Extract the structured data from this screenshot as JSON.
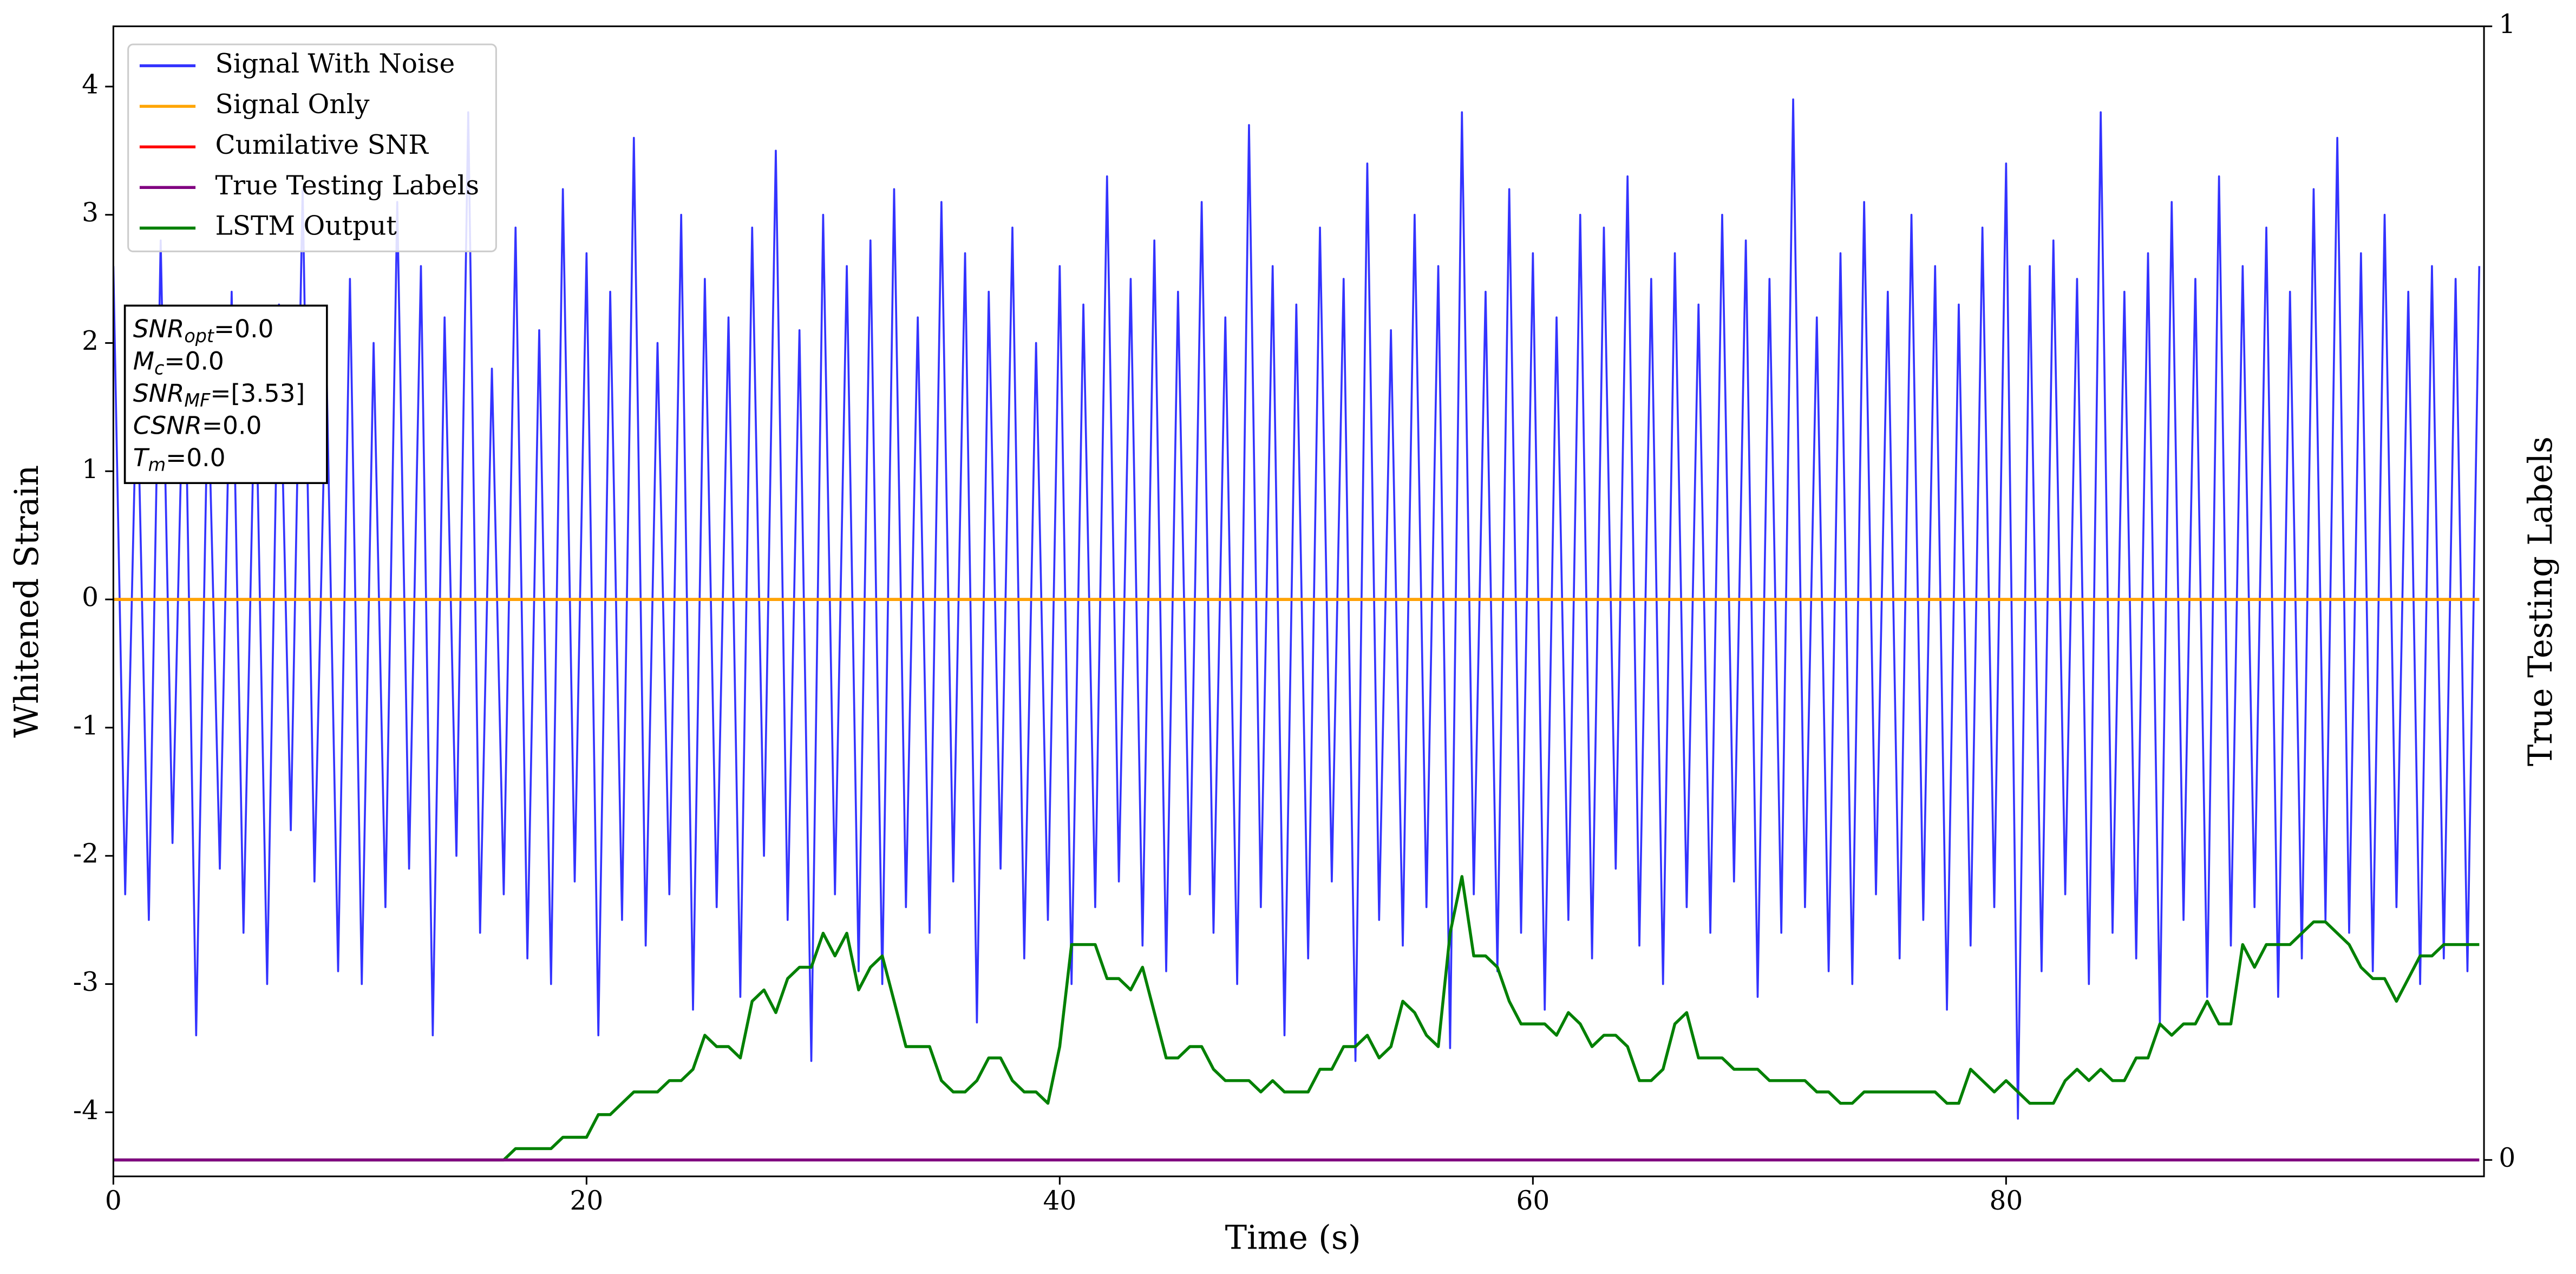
{
  "chart_data": {
    "type": "line",
    "xlabel": "Time (s)",
    "ylabel": "Whitened Strain",
    "y2label": "True Testing Labels",
    "xlim": [
      0,
      100.2
    ],
    "ylim": [
      -4.5,
      4.47
    ],
    "y2lim": [
      -0.0145,
      1
    ],
    "xticks": [
      0,
      20,
      40,
      60,
      80
    ],
    "yticks": [
      -4,
      -3,
      -2,
      -1,
      0,
      1,
      2,
      3,
      4
    ],
    "y2ticks": [
      0,
      1
    ],
    "legend": "upper left",
    "annotations": [
      {
        "main": "SNR",
        "sub": "opt",
        "rest": "=0.0"
      },
      {
        "main": "M",
        "sub": "c",
        "rest": "=0.0"
      },
      {
        "main": "SNR",
        "sub": "MF",
        "rest": "=[3.53]"
      },
      {
        "main": "CSNR",
        "sub": "",
        "rest": "=0.0"
      },
      {
        "main": "T",
        "sub": "m",
        "rest": "=0.0"
      }
    ],
    "x": [
      0,
      0.5,
      1,
      1.5,
      2,
      2.5,
      3,
      3.5,
      4,
      4.5,
      5,
      5.5,
      6,
      6.5,
      7,
      7.5,
      8,
      8.5,
      9,
      9.5,
      10,
      10.5,
      11,
      11.5,
      12,
      12.5,
      13,
      13.5,
      14,
      14.5,
      15,
      15.5,
      16,
      16.5,
      17,
      17.5,
      18,
      18.5,
      19,
      19.5,
      20,
      20.5,
      21,
      21.5,
      22,
      22.5,
      23,
      23.5,
      24,
      24.5,
      25,
      25.5,
      26,
      26.5,
      27,
      27.5,
      28,
      28.5,
      29,
      29.5,
      30,
      30.5,
      31,
      31.5,
      32,
      32.5,
      33,
      33.5,
      34,
      34.5,
      35,
      35.5,
      36,
      36.5,
      37,
      37.5,
      38,
      38.5,
      39,
      39.5,
      40,
      40.5,
      41,
      41.5,
      42,
      42.5,
      43,
      43.5,
      44,
      44.5,
      45,
      45.5,
      46,
      46.5,
      47,
      47.5,
      48,
      48.5,
      49,
      49.5,
      50,
      50.5,
      51,
      51.5,
      52,
      52.5,
      53,
      53.5,
      54,
      54.5,
      55,
      55.5,
      56,
      56.5,
      57,
      57.5,
      58,
      58.5,
      59,
      59.5,
      60,
      60.5,
      61,
      61.5,
      62,
      62.5,
      63,
      63.5,
      64,
      64.5,
      65,
      65.5,
      66,
      66.5,
      67,
      67.5,
      68,
      68.5,
      69,
      69.5,
      70,
      70.5,
      71,
      71.5,
      72,
      72.5,
      73,
      73.5,
      74,
      74.5,
      75,
      75.5,
      76,
      76.5,
      77,
      77.5,
      78,
      78.5,
      79,
      79.5,
      80,
      80.5,
      81,
      81.5,
      82,
      82.5,
      83,
      83.5,
      84,
      84.5,
      85,
      85.5,
      86,
      86.5,
      87,
      87.5,
      88,
      88.5,
      89,
      89.5,
      90,
      90.5,
      91,
      91.5,
      92,
      92.5,
      93,
      93.5,
      94,
      94.5,
      95,
      95.5,
      96,
      96.5,
      97,
      97.5,
      98,
      98.5,
      99,
      99.5,
      100
    ],
    "series": [
      {
        "name": "Signal With Noise",
        "color": "#3333ff",
        "values": [
          2.6,
          -2.3,
          1.8,
          -2.5,
          2.8,
          -1.9,
          2.2,
          -3.4,
          1.7,
          -2.1,
          2.4,
          -2.6,
          1.9,
          -3.0,
          2.3,
          -1.8,
          3.2,
          -2.2,
          1.9,
          -2.9,
          2.5,
          -3.0,
          2.0,
          -2.4,
          3.1,
          -2.1,
          2.6,
          -3.4,
          2.2,
          -2.0,
          3.8,
          -2.6,
          1.8,
          -2.3,
          2.9,
          -2.8,
          2.1,
          -3.0,
          3.2,
          -2.2,
          2.7,
          -3.4,
          2.4,
          -2.5,
          3.6,
          -2.7,
          2.0,
          -2.3,
          3.0,
          -3.2,
          2.5,
          -2.4,
          2.2,
          -3.1,
          2.9,
          -2.0,
          3.5,
          -2.5,
          2.1,
          -3.6,
          3.0,
          -2.3,
          2.6,
          -2.9,
          2.8,
          -3.0,
          3.2,
          -2.4,
          2.2,
          -2.6,
          3.1,
          -2.2,
          2.7,
          -3.3,
          2.4,
          -2.1,
          2.9,
          -2.8,
          2.0,
          -2.5,
          2.6,
          -3.0,
          2.3,
          -2.4,
          3.3,
          -2.2,
          2.5,
          -2.7,
          2.8,
          -2.9,
          2.4,
          -2.3,
          3.1,
          -2.6,
          2.2,
          -3.0,
          3.7,
          -2.4,
          2.6,
          -3.4,
          2.3,
          -2.8,
          2.9,
          -2.2,
          2.5,
          -3.6,
          3.4,
          -2.5,
          2.1,
          -2.7,
          3.0,
          -2.4,
          2.6,
          -3.5,
          3.8,
          -2.3,
          2.4,
          -2.9,
          3.2,
          -2.6,
          2.7,
          -3.2,
          2.2,
          -2.5,
          3.0,
          -2.8,
          2.9,
          -2.1,
          3.3,
          -2.7,
          2.5,
          -3.0,
          2.7,
          -2.4,
          2.3,
          -2.6,
          3.0,
          -2.2,
          2.8,
          -3.1,
          2.5,
          -2.6,
          3.9,
          -2.4,
          2.2,
          -2.9,
          2.7,
          -3.0,
          3.1,
          -2.3,
          2.4,
          -2.8,
          3.0,
          -2.5,
          2.6,
          -3.2,
          2.3,
          -2.7,
          2.9,
          -2.4,
          3.4,
          -4.05,
          2.6,
          -2.9,
          2.8,
          -2.3,
          2.5,
          -3.0,
          3.8,
          -2.6,
          2.4,
          -2.8,
          2.7,
          -3.3,
          3.1,
          -2.5,
          2.5,
          -3.1,
          3.3,
          -2.7,
          2.6,
          -2.4,
          2.9,
          -3.1,
          2.4,
          -2.8,
          3.2,
          -2.5,
          3.6,
          -2.6,
          2.7,
          -2.9,
          3.0,
          -2.4,
          2.4,
          -3.0,
          2.6,
          -2.8,
          2.5,
          -2.9,
          2.6
        ]
      },
      {
        "name": "Signal Only",
        "color": "#ffa500",
        "values": [
          0,
          0,
          0,
          0,
          0,
          0,
          0,
          0,
          0,
          0,
          0,
          0,
          0,
          0,
          0,
          0,
          0,
          0,
          0,
          0,
          0,
          0,
          0,
          0,
          0,
          0,
          0,
          0,
          0,
          0,
          0,
          0,
          0,
          0,
          0,
          0,
          0,
          0,
          0,
          0,
          0,
          0,
          0,
          0,
          0,
          0,
          0,
          0,
          0,
          0,
          0,
          0,
          0,
          0,
          0,
          0,
          0,
          0,
          0,
          0,
          0,
          0,
          0,
          0,
          0,
          0,
          0,
          0,
          0,
          0,
          0,
          0,
          0,
          0,
          0,
          0,
          0,
          0,
          0,
          0,
          0,
          0,
          0,
          0,
          0,
          0,
          0,
          0,
          0,
          0,
          0,
          0,
          0,
          0,
          0,
          0,
          0,
          0,
          0,
          0,
          0,
          0,
          0,
          0,
          0,
          0,
          0,
          0,
          0,
          0,
          0,
          0,
          0,
          0,
          0,
          0,
          0,
          0,
          0,
          0,
          0,
          0,
          0,
          0,
          0,
          0,
          0,
          0,
          0,
          0,
          0,
          0,
          0,
          0,
          0,
          0,
          0,
          0,
          0,
          0,
          0,
          0,
          0,
          0,
          0,
          0,
          0,
          0,
          0,
          0,
          0,
          0,
          0,
          0,
          0,
          0,
          0,
          0,
          0,
          0,
          0,
          0,
          0,
          0,
          0,
          0,
          0,
          0,
          0,
          0,
          0,
          0,
          0,
          0,
          0,
          0,
          0,
          0,
          0,
          0,
          0,
          0,
          0,
          0,
          0,
          0,
          0,
          0,
          0,
          0,
          0,
          0,
          0,
          0,
          0,
          0,
          0,
          0,
          0,
          0,
          0
        ]
      },
      {
        "name": "Cumilative SNR",
        "color": "#ff0000",
        "values": [
          0,
          0,
          0,
          0,
          0,
          0,
          0,
          0,
          0,
          0,
          0,
          0,
          0,
          0,
          0,
          0,
          0,
          0,
          0,
          0,
          0,
          0,
          0,
          0,
          0,
          0,
          0,
          0,
          0,
          0,
          0,
          0,
          0,
          0,
          0,
          0,
          0,
          0,
          0,
          0,
          0,
          0,
          0,
          0,
          0,
          0,
          0,
          0,
          0,
          0,
          0,
          0,
          0,
          0,
          0,
          0,
          0,
          0,
          0,
          0,
          0,
          0,
          0,
          0,
          0,
          0,
          0,
          0,
          0,
          0,
          0,
          0,
          0,
          0,
          0,
          0,
          0,
          0,
          0,
          0,
          0,
          0,
          0,
          0,
          0,
          0,
          0,
          0,
          0,
          0,
          0,
          0,
          0,
          0,
          0,
          0,
          0,
          0,
          0,
          0,
          0,
          0,
          0,
          0,
          0,
          0,
          0,
          0,
          0,
          0,
          0,
          0,
          0,
          0,
          0,
          0,
          0,
          0,
          0,
          0,
          0,
          0,
          0,
          0,
          0,
          0,
          0,
          0,
          0,
          0,
          0,
          0,
          0,
          0,
          0,
          0,
          0,
          0,
          0,
          0,
          0,
          0,
          0,
          0,
          0,
          0,
          0,
          0,
          0,
          0,
          0,
          0,
          0,
          0,
          0,
          0,
          0,
          0,
          0,
          0,
          0,
          0,
          0,
          0,
          0,
          0,
          0,
          0,
          0,
          0,
          0,
          0,
          0,
          0,
          0,
          0,
          0,
          0,
          0,
          0,
          0,
          0,
          0,
          0,
          0,
          0,
          0,
          0,
          0,
          0,
          0,
          0,
          0,
          0,
          0,
          0,
          0,
          0,
          0,
          0,
          0
        ]
      },
      {
        "name": "True Testing Labels",
        "color": "#800080",
        "axis": "y2",
        "values": [
          0,
          0,
          0,
          0,
          0,
          0,
          0,
          0,
          0,
          0,
          0,
          0,
          0,
          0,
          0,
          0,
          0,
          0,
          0,
          0,
          0,
          0,
          0,
          0,
          0,
          0,
          0,
          0,
          0,
          0,
          0,
          0,
          0,
          0,
          0,
          0,
          0,
          0,
          0,
          0,
          0,
          0,
          0,
          0,
          0,
          0,
          0,
          0,
          0,
          0,
          0,
          0,
          0,
          0,
          0,
          0,
          0,
          0,
          0,
          0,
          0,
          0,
          0,
          0,
          0,
          0,
          0,
          0,
          0,
          0,
          0,
          0,
          0,
          0,
          0,
          0,
          0,
          0,
          0,
          0,
          0,
          0,
          0,
          0,
          0,
          0,
          0,
          0,
          0,
          0,
          0,
          0,
          0,
          0,
          0,
          0,
          0,
          0,
          0,
          0,
          0,
          0,
          0,
          0,
          0,
          0,
          0,
          0,
          0,
          0,
          0,
          0,
          0,
          0,
          0,
          0,
          0,
          0,
          0,
          0,
          0,
          0,
          0,
          0,
          0,
          0,
          0,
          0,
          0,
          0,
          0,
          0,
          0,
          0,
          0,
          0,
          0,
          0,
          0,
          0,
          0,
          0,
          0,
          0,
          0,
          0,
          0,
          0,
          0,
          0,
          0,
          0,
          0,
          0,
          0,
          0,
          0,
          0,
          0,
          0,
          0,
          0,
          0,
          0,
          0,
          0,
          0,
          0,
          0,
          0,
          0,
          0,
          0,
          0,
          0,
          0,
          0,
          0,
          0,
          0,
          0,
          0,
          0,
          0,
          0,
          0,
          0,
          0,
          0,
          0,
          0,
          0,
          0,
          0,
          0,
          0,
          0,
          0,
          0,
          0,
          0
        ]
      },
      {
        "name": "LSTM Output",
        "color": "#008000",
        "axis": "y2",
        "values": [
          0,
          0,
          0,
          0,
          0,
          0,
          0,
          0,
          0,
          0,
          0,
          0,
          0,
          0,
          0,
          0,
          0,
          0,
          0,
          0,
          0,
          0,
          0,
          0,
          0,
          0,
          0,
          0,
          0,
          0,
          0,
          0,
          0,
          0,
          0.01,
          0.01,
          0.01,
          0.01,
          0.02,
          0.02,
          0.02,
          0.04,
          0.04,
          0.05,
          0.06,
          0.06,
          0.06,
          0.07,
          0.07,
          0.08,
          0.11,
          0.1,
          0.1,
          0.09,
          0.14,
          0.15,
          0.13,
          0.16,
          0.17,
          0.17,
          0.2,
          0.18,
          0.2,
          0.15,
          0.17,
          0.18,
          0.14,
          0.1,
          0.1,
          0.1,
          0.07,
          0.06,
          0.06,
          0.07,
          0.09,
          0.09,
          0.07,
          0.06,
          0.06,
          0.05,
          0.1,
          0.19,
          0.19,
          0.19,
          0.16,
          0.16,
          0.15,
          0.17,
          0.13,
          0.09,
          0.09,
          0.1,
          0.1,
          0.08,
          0.07,
          0.07,
          0.07,
          0.06,
          0.07,
          0.06,
          0.06,
          0.06,
          0.08,
          0.08,
          0.1,
          0.1,
          0.11,
          0.09,
          0.1,
          0.14,
          0.13,
          0.11,
          0.1,
          0.2,
          0.25,
          0.18,
          0.18,
          0.17,
          0.14,
          0.12,
          0.12,
          0.12,
          0.11,
          0.13,
          0.12,
          0.1,
          0.11,
          0.11,
          0.1,
          0.07,
          0.07,
          0.08,
          0.12,
          0.13,
          0.09,
          0.09,
          0.09,
          0.08,
          0.08,
          0.08,
          0.07,
          0.07,
          0.07,
          0.07,
          0.06,
          0.06,
          0.05,
          0.05,
          0.06,
          0.06,
          0.06,
          0.06,
          0.06,
          0.06,
          0.06,
          0.05,
          0.05,
          0.08,
          0.07,
          0.06,
          0.07,
          0.06,
          0.05,
          0.05,
          0.05,
          0.07,
          0.08,
          0.07,
          0.08,
          0.07,
          0.07,
          0.09,
          0.09,
          0.12,
          0.11,
          0.12,
          0.12,
          0.14,
          0.12,
          0.12,
          0.19,
          0.17,
          0.19,
          0.19,
          0.19,
          0.2,
          0.21,
          0.21,
          0.2,
          0.19,
          0.17,
          0.16,
          0.16,
          0.14,
          0.16,
          0.18,
          0.18,
          0.19,
          0.19,
          0.19,
          0.19
        ]
      }
    ]
  }
}
